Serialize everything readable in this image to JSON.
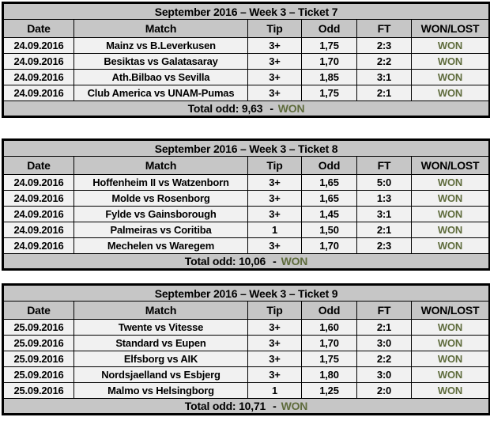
{
  "accent": {
    "won_color": "#5e6b3c",
    "header_bg": "#c6c6c6",
    "row_bg": "#f1f1f1",
    "border_color": "#000000"
  },
  "tickets": [
    {
      "title": "September 2016 – Week 3 – Ticket 7",
      "headers": [
        "Date",
        "Match",
        "Tip",
        "Odd",
        "FT",
        "WON/LOST"
      ],
      "rows": [
        {
          "date": "24.09.2016",
          "match": "Mainz vs B.Leverkusen",
          "tip": "3+",
          "odd": "1,75",
          "ft": "2:3",
          "result": "WON"
        },
        {
          "date": "24.09.2016",
          "match": "Besiktas vs Galatasaray",
          "tip": "3+",
          "odd": "1,70",
          "ft": "2:2",
          "result": "WON"
        },
        {
          "date": "24.09.2016",
          "match": "Ath.Bilbao vs Sevilla",
          "tip": "3+",
          "odd": "1,85",
          "ft": "3:1",
          "result": "WON"
        },
        {
          "date": "24.09.2016",
          "match": "Club America vs UNAM-Pumas",
          "tip": "3+",
          "odd": "1,75",
          "ft": "2:1",
          "result": "WON"
        }
      ],
      "total_label": "Total odd: 9,63",
      "total_dash": "-",
      "total_result": "WON"
    },
    {
      "title": "September 2016 – Week 3 – Ticket 8",
      "headers": [
        "Date",
        "Match",
        "Tip",
        "Odd",
        "FT",
        "WON/LOST"
      ],
      "rows": [
        {
          "date": "24.09.2016",
          "match": "Hoffenheim II vs Watzenborn",
          "tip": "3+",
          "odd": "1,65",
          "ft": "5:0",
          "result": "WON"
        },
        {
          "date": "24.09.2016",
          "match": "Molde vs Rosenborg",
          "tip": "3+",
          "odd": "1,65",
          "ft": "1:3",
          "result": "WON"
        },
        {
          "date": "24.09.2016",
          "match": "Fylde vs Gainsborough",
          "tip": "3+",
          "odd": "1,45",
          "ft": "3:1",
          "result": "WON"
        },
        {
          "date": "24.09.2016",
          "match": "Palmeiras vs Coritiba",
          "tip": "1",
          "odd": "1,50",
          "ft": "2:1",
          "result": "WON"
        },
        {
          "date": "24.09.2016",
          "match": "Mechelen vs Waregem",
          "tip": "3+",
          "odd": "1,70",
          "ft": "2:3",
          "result": "WON"
        }
      ],
      "total_label": "Total odd: 10,06",
      "total_dash": "-",
      "total_result": "WON"
    },
    {
      "title": "September 2016 – Week 3 – Ticket 9",
      "headers": [
        "Date",
        "Match",
        "Tip",
        "Odd",
        "FT",
        "WON/LOST"
      ],
      "rows": [
        {
          "date": "25.09.2016",
          "match": "Twente vs Vitesse",
          "tip": "3+",
          "odd": "1,60",
          "ft": "2:1",
          "result": "WON"
        },
        {
          "date": "25.09.2016",
          "match": "Standard vs Eupen",
          "tip": "3+",
          "odd": "1,70",
          "ft": "3:0",
          "result": "WON"
        },
        {
          "date": "25.09.2016",
          "match": "Elfsborg vs AIK",
          "tip": "3+",
          "odd": "1,75",
          "ft": "2:2",
          "result": "WON"
        },
        {
          "date": "25.09.2016",
          "match": "Nordsjaelland vs Esbjerg",
          "tip": "3+",
          "odd": "1,80",
          "ft": "3:0",
          "result": "WON"
        },
        {
          "date": "25.09.2016",
          "match": "Malmo vs Helsingborg",
          "tip": "1",
          "odd": "1,25",
          "ft": "2:0",
          "result": "WON"
        }
      ],
      "total_label": "Total odd: 10,71",
      "total_dash": "-",
      "total_result": "WON"
    }
  ]
}
